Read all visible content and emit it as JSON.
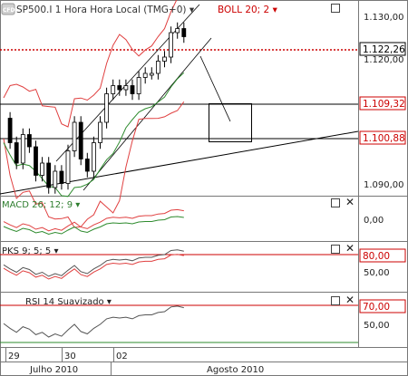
{
  "header": {
    "logo_text": "CFD",
    "instrument_title": "SP500.I 1 Hora Hora Local (TMG+0) ▾",
    "boll_label": "BOLL 20; 2 ▾"
  },
  "panels": {
    "macd": {
      "label": "MACD 26; 12; 9 ▾",
      "ticks": [
        "0,00"
      ]
    },
    "pks": {
      "label": "PKS 9; 5; 5 ▾",
      "ticks": [
        "80,00",
        "50,00"
      ]
    },
    "rsi": {
      "label": "RSI 14 Suavizado ▾",
      "ticks": [
        "70,00",
        "50,00"
      ]
    }
  },
  "price_axis": {
    "ticks": [
      "1.130,00",
      "1.120,00",
      "1.090,00"
    ],
    "badges": [
      {
        "text": "1.122,26",
        "color": "#000000"
      },
      {
        "text": "1.109,32",
        "color": "#cc0000"
      },
      {
        "text": "1.100,88",
        "color": "#cc0000"
      }
    ]
  },
  "time_axis": {
    "day_ticks": [
      "29",
      "30",
      "02"
    ],
    "month_labels": [
      "Julho 2010",
      "Agosto 2010"
    ]
  },
  "colors": {
    "bollinger": "#e04040",
    "bollinger_mid": "#2e8b2e",
    "support_line": "#000000",
    "macd_line": "#e04040",
    "macd_signal": "#2e8b2e",
    "indicator_line": "#555555",
    "red_level": "#cc0000",
    "green_level": "#2e8b2e"
  },
  "icons": [
    "window-toggle-icon",
    "close-icon"
  ],
  "chart_data": {
    "type": "candlestick",
    "y_axis_range": [
      1085,
      1133
    ],
    "prices": [
      1104,
      1098,
      1093,
      1100,
      1097,
      1090,
      1093,
      1087,
      1091,
      1088,
      1096,
      1103,
      1094,
      1091,
      1098,
      1103,
      1110,
      1112,
      1111,
      1112,
      1110,
      1114,
      1115,
      1115,
      1118,
      1119,
      1125,
      1126,
      1124
    ]
  }
}
